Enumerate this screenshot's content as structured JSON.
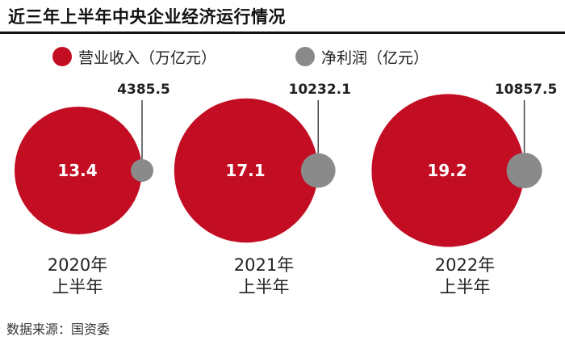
{
  "title": "近三年上半年中央企业经济运行情况",
  "legend": {
    "revenue_label": "营业收入（万亿元）",
    "profit_label": "净利润（亿元）"
  },
  "colors": {
    "revenue": "#c30d23",
    "profit": "#8a8a8a",
    "callout_line": "#444444"
  },
  "chart_data": {
    "type": "scatter",
    "title": "近三年上半年中央企业经济运行情况",
    "categories": [
      "2020年上半年",
      "2021年上半年",
      "2022年上半年"
    ],
    "category_lines": [
      [
        "2020年",
        "上半年"
      ],
      [
        "2021年",
        "上半年"
      ],
      [
        "2022年",
        "上半年"
      ]
    ],
    "series": [
      {
        "name": "营业收入（万亿元）",
        "values": [
          13.4,
          17.1,
          19.2
        ],
        "labels": [
          "13.4",
          "17.1",
          "19.2"
        ]
      },
      {
        "name": "净利润（亿元）",
        "values": [
          4385.5,
          10232.1,
          10857.5
        ],
        "labels": [
          "4385.5",
          "10232.1",
          "10857.5"
        ]
      }
    ],
    "legend_position": "top"
  },
  "source": "数据来源：国资委"
}
